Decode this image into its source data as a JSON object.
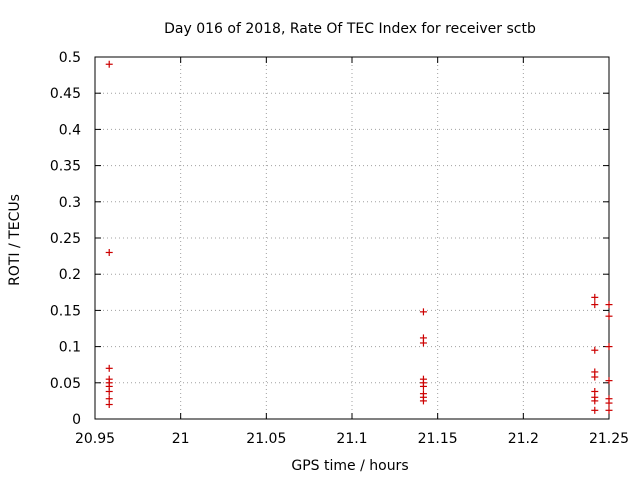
{
  "chart_data": {
    "type": "scatter",
    "title": "Day 016 of 2018, Rate Of TEC Index for receiver sctb",
    "xlabel": "GPS time / hours",
    "ylabel": "ROTI / TECUs",
    "xlim": [
      20.95,
      21.25
    ],
    "ylim": [
      0,
      0.5
    ],
    "xticks": [
      "20.95",
      "21",
      "21.05",
      "21.1",
      "21.15",
      "21.2",
      "21.25"
    ],
    "xtick_values": [
      20.95,
      21.0,
      21.05,
      21.1,
      21.15,
      21.2,
      21.25
    ],
    "yticks": [
      "0",
      "0.05",
      "0.1",
      "0.15",
      "0.2",
      "0.25",
      "0.3",
      "0.35",
      "0.4",
      "0.45",
      "0.5"
    ],
    "ytick_values": [
      0,
      0.05,
      0.1,
      0.15,
      0.2,
      0.25,
      0.3,
      0.35,
      0.4,
      0.45,
      0.5
    ],
    "grid": true,
    "marker": "+",
    "color": "#cc0000",
    "series": [
      {
        "name": "ROTI",
        "points": [
          {
            "x": 20.9583,
            "y": 0.49
          },
          {
            "x": 20.9583,
            "y": 0.23
          },
          {
            "x": 20.9583,
            "y": 0.07
          },
          {
            "x": 20.9583,
            "y": 0.055
          },
          {
            "x": 20.9583,
            "y": 0.05
          },
          {
            "x": 20.9583,
            "y": 0.045
          },
          {
            "x": 20.9583,
            "y": 0.038
          },
          {
            "x": 20.9583,
            "y": 0.028
          },
          {
            "x": 20.9583,
            "y": 0.02
          },
          {
            "x": 21.1417,
            "y": 0.148
          },
          {
            "x": 21.1417,
            "y": 0.112
          },
          {
            "x": 21.1417,
            "y": 0.105
          },
          {
            "x": 21.1417,
            "y": 0.055
          },
          {
            "x": 21.1417,
            "y": 0.05
          },
          {
            "x": 21.1417,
            "y": 0.045
          },
          {
            "x": 21.1417,
            "y": 0.035
          },
          {
            "x": 21.1417,
            "y": 0.03
          },
          {
            "x": 21.1417,
            "y": 0.025
          },
          {
            "x": 21.2417,
            "y": 0.168
          },
          {
            "x": 21.2417,
            "y": 0.158
          },
          {
            "x": 21.2417,
            "y": 0.095
          },
          {
            "x": 21.2417,
            "y": 0.065
          },
          {
            "x": 21.2417,
            "y": 0.058
          },
          {
            "x": 21.2417,
            "y": 0.038
          },
          {
            "x": 21.2417,
            "y": 0.03
          },
          {
            "x": 21.2417,
            "y": 0.025
          },
          {
            "x": 21.2417,
            "y": 0.012
          },
          {
            "x": 21.25,
            "y": 0.158
          },
          {
            "x": 21.25,
            "y": 0.142
          },
          {
            "x": 21.25,
            "y": 0.1
          },
          {
            "x": 21.25,
            "y": 0.053
          },
          {
            "x": 21.25,
            "y": 0.028
          },
          {
            "x": 21.25,
            "y": 0.022
          },
          {
            "x": 21.25,
            "y": 0.012
          }
        ]
      }
    ]
  }
}
